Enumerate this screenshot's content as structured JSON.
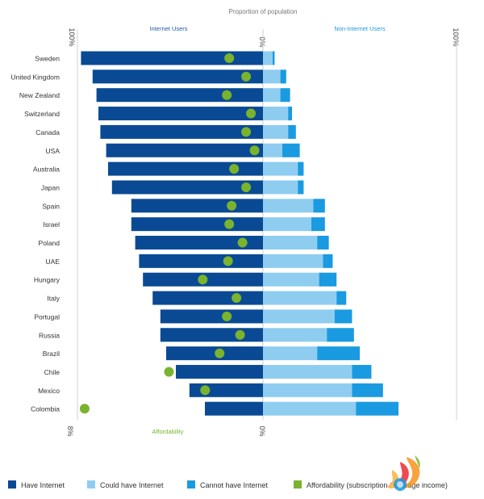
{
  "colors": {
    "have": "#0a4a94",
    "could": "#8fcdf0",
    "cannot": "#1a9ae0",
    "afford": "#7ab32e",
    "text": "#333333",
    "axis_text": "#444444",
    "gridline": "#d0d0d0",
    "internet_users_label": "#1f5aa6",
    "non_internet_users_label": "#1a9ae0",
    "affordability_label": "#7ab32e"
  },
  "chart_data": {
    "type": "bar",
    "orientation": "horizontal-diverging",
    "title": "Proportion of population",
    "left_header": "Internet Users",
    "right_header": "Non-Internet Users",
    "top_ticks": [
      "100%",
      "0%",
      "100%"
    ],
    "bottom_ticks": [
      "8%",
      "0%"
    ],
    "bottom_axis_label": "Affordability",
    "units": "percent of population; affordability = subscription cost as % of average income",
    "ylim_population": [
      0,
      100
    ],
    "xlim_affordability": [
      0,
      8
    ],
    "categories": [
      "Sweden",
      "United Kingdom",
      "New Zealand",
      "Switzerland",
      "Canada",
      "USA",
      "Australia",
      "Japan",
      "Spain",
      "Israel",
      "Poland",
      "UAE",
      "Hungary",
      "Italy",
      "Portugal",
      "Russia",
      "Brazil",
      "Chile",
      "Mexico",
      "Colombia"
    ],
    "series": [
      {
        "name": "Have Internet",
        "values": [
          94,
          88,
          86,
          85,
          84,
          81,
          80,
          78,
          68,
          68,
          66,
          64,
          62,
          57,
          53,
          53,
          50,
          45,
          38,
          30
        ]
      },
      {
        "name": "Could have Internet",
        "values": [
          5,
          9,
          9,
          13,
          13,
          10,
          18,
          18,
          26,
          25,
          28,
          31,
          29,
          38,
          37,
          33,
          28,
          46,
          46,
          48
        ]
      },
      {
        "name": "Cannot have Internet",
        "values": [
          1,
          3,
          5,
          2,
          4,
          9,
          3,
          3,
          6,
          7,
          6,
          5,
          9,
          5,
          9,
          14,
          22,
          10,
          16,
          22
        ]
      },
      {
        "name": "Affordability (subscription / average income)",
        "values": [
          1.4,
          0.7,
          1.5,
          0.5,
          0.7,
          0.35,
          1.2,
          0.7,
          1.3,
          1.4,
          0.85,
          1.45,
          2.5,
          1.1,
          1.5,
          0.95,
          1.8,
          3.9,
          2.4,
          7.4
        ]
      }
    ]
  },
  "legend": {
    "items": [
      {
        "label": "Have Internet",
        "color_key": "have"
      },
      {
        "label": "Could have Internet",
        "color_key": "could"
      },
      {
        "label": "Cannot have Internet",
        "color_key": "cannot"
      },
      {
        "label": "Affordability (subscription / average income)",
        "color_key": "afford"
      }
    ]
  },
  "logo": {
    "icon": "flame-swirl-logo-icon"
  }
}
